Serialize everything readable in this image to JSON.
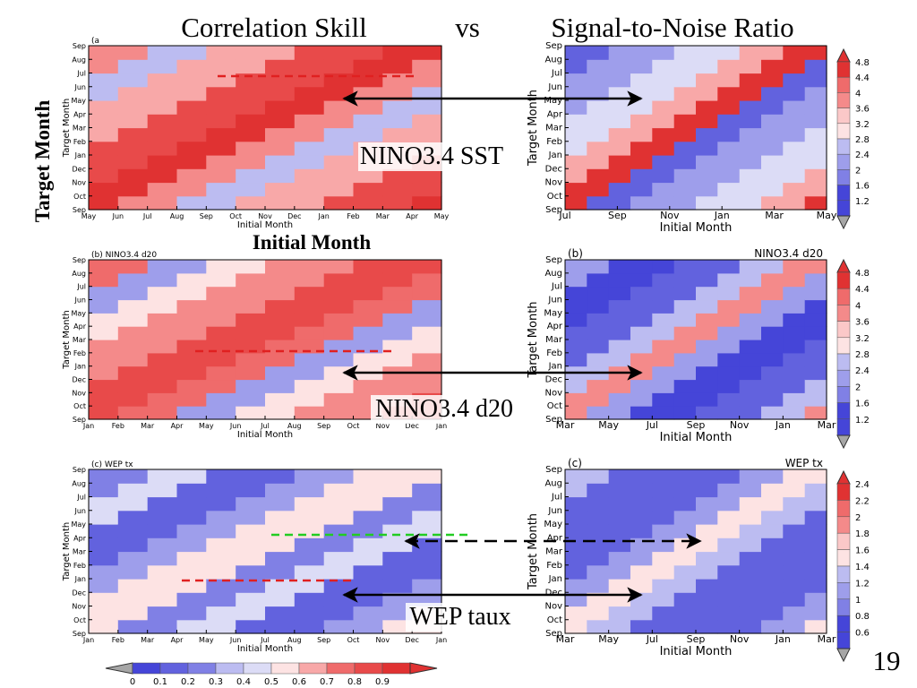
{
  "slide": {
    "title_left": "Correlation Skill",
    "title_vs": "vs",
    "title_right": "Signal-to-Noise Ratio",
    "side_label": "Target Month",
    "initial_month_heading": "Initial Month",
    "page_number": "19",
    "arrow_labels": [
      "NINO3.4 SST",
      "NINO3.4 d20",
      "WEP taux"
    ]
  },
  "colors": {
    "positive_ramp": [
      "#fde3e3",
      "#fbc8c8",
      "#f8a8a8",
      "#f48a8a",
      "#ef6b6b",
      "#e84a4a",
      "#e03232"
    ],
    "negative_ramp": [
      "#dcdcf6",
      "#bcbcf1",
      "#9e9eeb",
      "#8080e5",
      "#6262de",
      "#4545d8"
    ],
    "missing": "#a6a6a6",
    "dash_red": "#e02020",
    "dash_green": "#22cc22"
  },
  "chart_data": [
    {
      "type": "heatmap",
      "panel_label": "(a",
      "title": "",
      "xlabel": "Initial Month",
      "ylabel": "Target Month",
      "x_ticks": [
        "May",
        "Jun",
        "Jul",
        "Aug",
        "Sep",
        "Oct",
        "Nov",
        "Dec",
        "Jan",
        "Feb",
        "Mar",
        "Apr",
        "May"
      ],
      "y_ticks": [
        "Sep",
        "Oct",
        "Nov",
        "Dec",
        "Jan",
        "Feb",
        "Mar",
        "Apr",
        "May",
        "Jun",
        "Jul",
        "Aug",
        "Sep"
      ],
      "bands": [
        {
          "from_lead": 0,
          "to_lead": 2,
          "value": 0.9
        },
        {
          "from_lead": 2,
          "to_lead": 5,
          "value": 0.8
        },
        {
          "from_lead": 5,
          "to_lead": 8,
          "value": 0.65
        },
        {
          "from_lead": 8,
          "to_lead": 10,
          "value": 0.35
        },
        {
          "from_lead": 10,
          "to_lead": 12,
          "value": 0.7
        }
      ],
      "annotation": "dashed red line near target month Jul"
    },
    {
      "type": "heatmap",
      "panel_label": "(b) NINO3.4 d20",
      "title": "",
      "xlabel": "Initial Month",
      "ylabel": "Target Month",
      "x_ticks": [
        "Jan",
        "Feb",
        "Mar",
        "Apr",
        "May",
        "Jun",
        "Jul",
        "Aug",
        "Sep",
        "Oct",
        "Nov",
        "Dec",
        "Jan"
      ],
      "y_ticks": [
        "Sep",
        "Oct",
        "Nov",
        "Dec",
        "Jan",
        "Feb",
        "Mar",
        "Apr",
        "May",
        "Jun",
        "Jul",
        "Aug",
        "Sep"
      ],
      "bands": [
        {
          "from_lead": 0,
          "to_lead": 3,
          "value": 0.85
        },
        {
          "from_lead": 3,
          "to_lead": 6,
          "value": 0.7
        },
        {
          "from_lead": 6,
          "to_lead": 8,
          "value": 0.5
        },
        {
          "from_lead": 8,
          "to_lead": 10,
          "value": 0.3
        },
        {
          "from_lead": 10,
          "to_lead": 12,
          "value": 0.75
        }
      ],
      "annotation": "dashed red line near target month Feb"
    },
    {
      "type": "heatmap",
      "panel_label": "(c) WEP tx",
      "title": "",
      "xlabel": "Initial Month",
      "ylabel": "Target Month",
      "x_ticks": [
        "Jan",
        "Feb",
        "Mar",
        "Apr",
        "May",
        "Jun",
        "Jul",
        "Aug",
        "Sep",
        "Oct",
        "Nov",
        "Dec",
        "Jan"
      ],
      "y_ticks": [
        "Sep",
        "Oct",
        "Nov",
        "Dec",
        "Jan",
        "Feb",
        "Mar",
        "Apr",
        "May",
        "Jun",
        "Jul",
        "Aug",
        "Sep"
      ],
      "bands": [
        {
          "from_lead": 0,
          "to_lead": 3,
          "value": 0.55
        },
        {
          "from_lead": 3,
          "to_lead": 5,
          "value": 0.3
        },
        {
          "from_lead": 5,
          "to_lead": 8,
          "value": 0.15
        },
        {
          "from_lead": 8,
          "to_lead": 10,
          "value": 0.45
        },
        {
          "from_lead": 10,
          "to_lead": 12,
          "value": 0.2
        }
      ],
      "annotation": "dashed green line near Apr, dashed red line near Jan"
    },
    {
      "type": "heatmap",
      "panel_label": "",
      "title": "",
      "xlabel": "Initial Month",
      "ylabel": "Target Month",
      "x_ticks": [
        "Jul",
        "Sep",
        "Nov",
        "Jan",
        "Mar",
        "May"
      ],
      "y_ticks": [
        "Sep",
        "Oct",
        "Nov",
        "Dec",
        "Jan",
        "Feb",
        "Mar",
        "Apr",
        "May",
        "Jun",
        "Jul",
        "Aug",
        "Sep"
      ],
      "bands": [
        {
          "from_lead": 0,
          "to_lead": 2,
          "value": 4.6
        },
        {
          "from_lead": 2,
          "to_lead": 4,
          "value": 3.6
        },
        {
          "from_lead": 4,
          "to_lead": 7,
          "value": 2.8
        },
        {
          "from_lead": 7,
          "to_lead": 10,
          "value": 2.2
        },
        {
          "from_lead": 10,
          "to_lead": 12,
          "value": 1.8
        }
      ]
    },
    {
      "type": "heatmap",
      "panel_label": "(b)",
      "panel_title": "NINO3.4 d20",
      "title": "",
      "xlabel": "Initial Month",
      "ylabel": "Target Month",
      "x_ticks": [
        "Mar",
        "May",
        "Jul",
        "Sep",
        "Nov",
        "Jan",
        "Mar"
      ],
      "y_ticks": [
        "Sep",
        "Oct",
        "Nov",
        "Dec",
        "Jan",
        "Feb",
        "Mar",
        "Apr",
        "May",
        "Jun",
        "Jul",
        "Aug",
        "Sep"
      ],
      "bands": [
        {
          "from_lead": 0,
          "to_lead": 2,
          "value": 3.8
        },
        {
          "from_lead": 2,
          "to_lead": 4,
          "value": 2.6
        },
        {
          "from_lead": 4,
          "to_lead": 7,
          "value": 1.8
        },
        {
          "from_lead": 7,
          "to_lead": 10,
          "value": 1.5
        },
        {
          "from_lead": 10,
          "to_lead": 12,
          "value": 2.2
        }
      ]
    },
    {
      "type": "heatmap",
      "panel_label": "(c)",
      "panel_title": "WEP tx",
      "title": "",
      "xlabel": "Initial Month",
      "ylabel": "Target Month",
      "x_ticks": [
        "Mar",
        "May",
        "Jul",
        "Sep",
        "Nov",
        "Jan",
        "Mar"
      ],
      "y_ticks": [
        "Sep",
        "Oct",
        "Nov",
        "Dec",
        "Jan",
        "Feb",
        "Mar",
        "Apr",
        "May",
        "Jun",
        "Jul",
        "Aug",
        "Sep"
      ],
      "bands": [
        {
          "from_lead": 0,
          "to_lead": 2,
          "value": 1.5
        },
        {
          "from_lead": 2,
          "to_lead": 4,
          "value": 1.2
        },
        {
          "from_lead": 4,
          "to_lead": 7,
          "value": 0.9
        },
        {
          "from_lead": 7,
          "to_lead": 10,
          "value": 0.8
        },
        {
          "from_lead": 10,
          "to_lead": 12,
          "value": 1.3
        }
      ]
    }
  ],
  "colorbars": {
    "bottom_correlation": {
      "labels": [
        "0",
        "0.1",
        "0.2",
        "0.3",
        "0.4",
        "0.5",
        "0.6",
        "0.7",
        "0.8",
        "0.9"
      ],
      "levels": [
        0,
        0.1,
        0.2,
        0.3,
        0.4,
        0.5,
        0.6,
        0.7,
        0.8,
        0.9
      ]
    },
    "right_top": {
      "labels": [
        "4.8",
        "4.4",
        "4",
        "3.6",
        "3.2",
        "2.8",
        "2.4",
        "2",
        "1.6",
        "1.2"
      ],
      "levels": [
        4.8,
        4.4,
        4,
        3.6,
        3.2,
        2.8,
        2.4,
        2,
        1.6,
        1.2
      ]
    },
    "right_middle": {
      "labels": [
        "4.8",
        "4.4",
        "4",
        "3.6",
        "3.2",
        "2.8",
        "2.4",
        "2",
        "1.6",
        "1.2"
      ],
      "levels": [
        4.8,
        4.4,
        4,
        3.6,
        3.2,
        2.8,
        2.4,
        2,
        1.6,
        1.2
      ]
    },
    "right_bottom": {
      "labels": [
        "2.4",
        "2.2",
        "2",
        "1.8",
        "1.6",
        "1.4",
        "1.2",
        "1",
        "0.8",
        "0.6"
      ],
      "levels": [
        2.4,
        2.2,
        2,
        1.8,
        1.6,
        1.4,
        1.2,
        1,
        0.8,
        0.6
      ]
    }
  }
}
